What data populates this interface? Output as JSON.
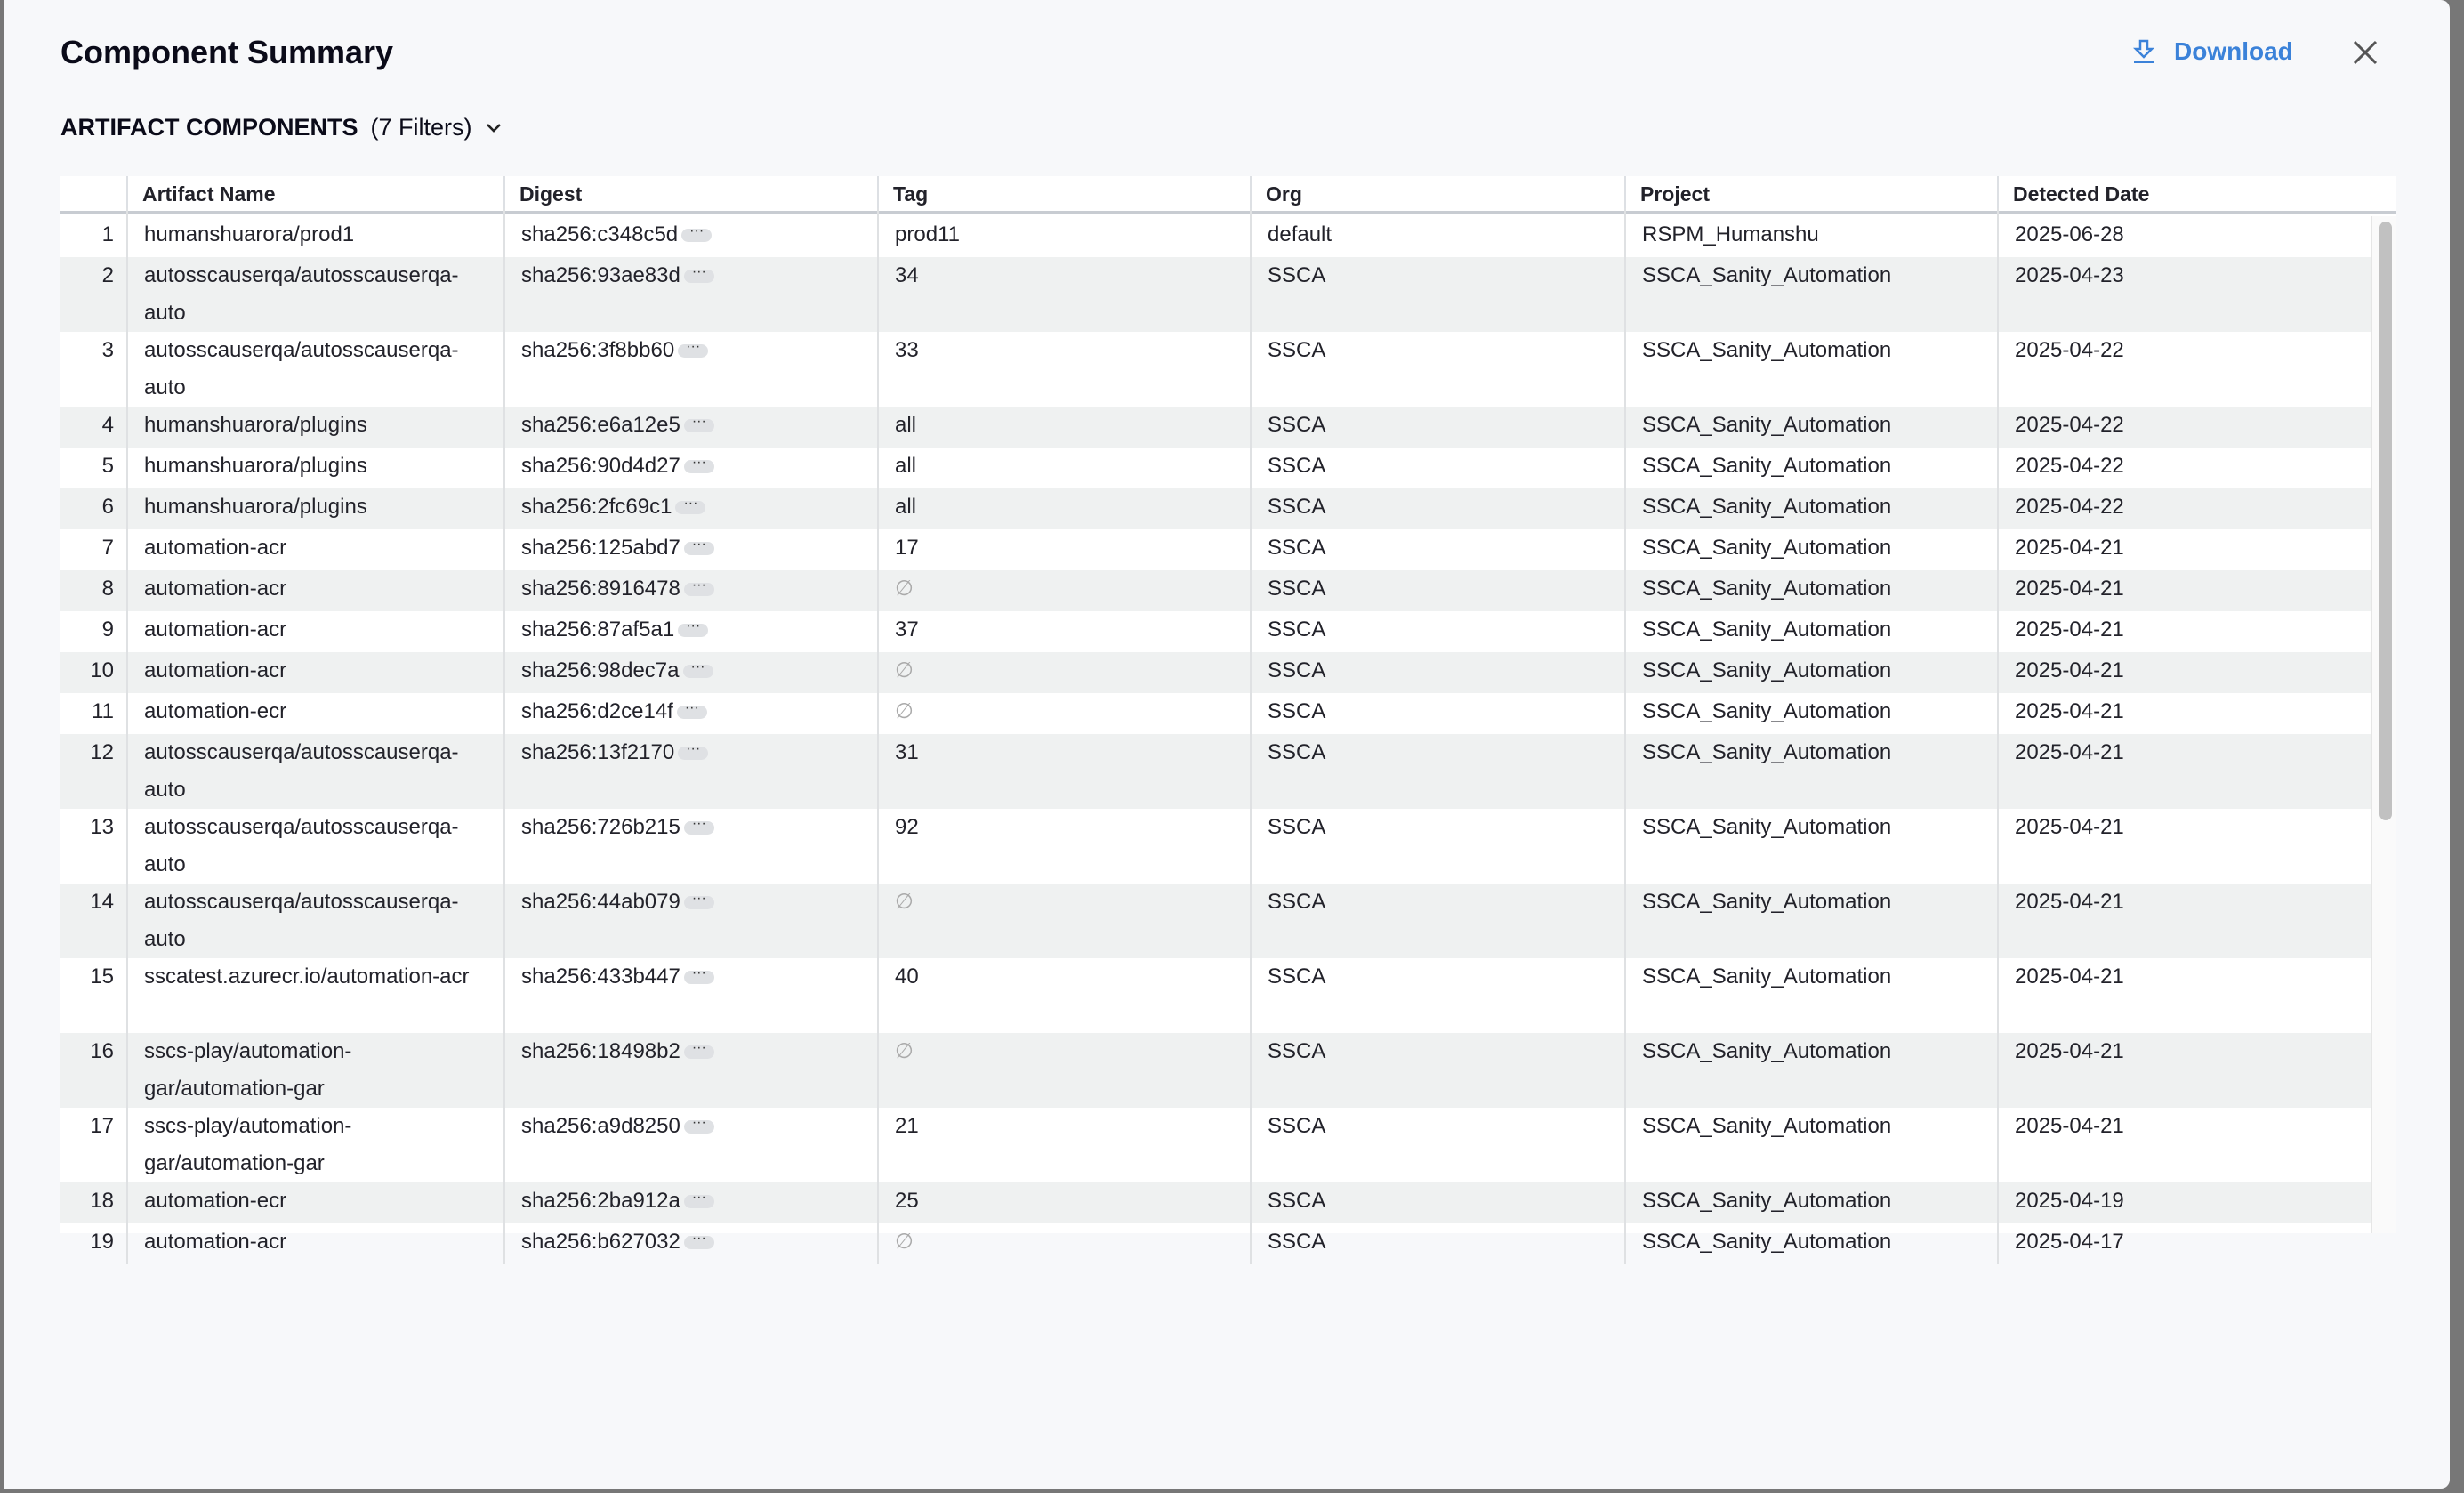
{
  "header": {
    "title": "Component Summary",
    "download_label": "Download",
    "download_icon": "download-icon",
    "close_icon": "close-icon",
    "accent": "#3b82d9"
  },
  "section": {
    "title": "ARTIFACT COMPONENTS",
    "filters": "(7 Filters)"
  },
  "table": {
    "columns": [
      "",
      "Artifact Name",
      "Digest",
      "Tag",
      "Org",
      "Project",
      "Detected Date"
    ],
    "rows": [
      {
        "n": "1",
        "name": "humanshuarora/prod1",
        "digest": "sha256:c348c5d",
        "tag": "prod11",
        "org": "default",
        "project": "RSPM_Humanshu",
        "date": "2025-06-28"
      },
      {
        "n": "2",
        "name": "autosscauserqa/autosscauserqa-auto",
        "digest": "sha256:93ae83d",
        "tag": "34",
        "org": "SSCA",
        "project": "SSCA_Sanity_Automation",
        "date": "2025-04-23"
      },
      {
        "n": "3",
        "name": "autosscauserqa/autosscauserqa-auto",
        "digest": "sha256:3f8bb60",
        "tag": "33",
        "org": "SSCA",
        "project": "SSCA_Sanity_Automation",
        "date": "2025-04-22"
      },
      {
        "n": "4",
        "name": "humanshuarora/plugins",
        "digest": "sha256:e6a12e5",
        "tag": "all",
        "org": "SSCA",
        "project": "SSCA_Sanity_Automation",
        "date": "2025-04-22"
      },
      {
        "n": "5",
        "name": "humanshuarora/plugins",
        "digest": "sha256:90d4d27",
        "tag": "all",
        "org": "SSCA",
        "project": "SSCA_Sanity_Automation",
        "date": "2025-04-22"
      },
      {
        "n": "6",
        "name": "humanshuarora/plugins",
        "digest": "sha256:2fc69c1",
        "tag": "all",
        "org": "SSCA",
        "project": "SSCA_Sanity_Automation",
        "date": "2025-04-22"
      },
      {
        "n": "7",
        "name": "automation-acr",
        "digest": "sha256:125abd7",
        "tag": "17",
        "org": "SSCA",
        "project": "SSCA_Sanity_Automation",
        "date": "2025-04-21"
      },
      {
        "n": "8",
        "name": "automation-acr",
        "digest": "sha256:8916478",
        "tag": "∅",
        "org": "SSCA",
        "project": "SSCA_Sanity_Automation",
        "date": "2025-04-21"
      },
      {
        "n": "9",
        "name": "automation-acr",
        "digest": "sha256:87af5a1",
        "tag": "37",
        "org": "SSCA",
        "project": "SSCA_Sanity_Automation",
        "date": "2025-04-21"
      },
      {
        "n": "10",
        "name": "automation-acr",
        "digest": "sha256:98dec7a",
        "tag": "∅",
        "org": "SSCA",
        "project": "SSCA_Sanity_Automation",
        "date": "2025-04-21"
      },
      {
        "n": "11",
        "name": "automation-ecr",
        "digest": "sha256:d2ce14f",
        "tag": "∅",
        "org": "SSCA",
        "project": "SSCA_Sanity_Automation",
        "date": "2025-04-21"
      },
      {
        "n": "12",
        "name": "autosscauserqa/autosscauserqa-auto",
        "digest": "sha256:13f2170",
        "tag": "31",
        "org": "SSCA",
        "project": "SSCA_Sanity_Automation",
        "date": "2025-04-21"
      },
      {
        "n": "13",
        "name": "autosscauserqa/autosscauserqa-auto",
        "digest": "sha256:726b215",
        "tag": "92",
        "org": "SSCA",
        "project": "SSCA_Sanity_Automation",
        "date": "2025-04-21"
      },
      {
        "n": "14",
        "name": "autosscauserqa/autosscauserqa-auto",
        "digest": "sha256:44ab079",
        "tag": "∅",
        "org": "SSCA",
        "project": "SSCA_Sanity_Automation",
        "date": "2025-04-21"
      },
      {
        "n": "15",
        "name": "sscatest.azurecr.io/automation-acr",
        "digest": "sha256:433b447",
        "tag": "40",
        "org": "SSCA",
        "project": "SSCA_Sanity_Automation",
        "date": "2025-04-21"
      },
      {
        "n": "16",
        "name": "sscs-play/automation-gar/automation-gar",
        "digest": "sha256:18498b2",
        "tag": "∅",
        "org": "SSCA",
        "project": "SSCA_Sanity_Automation",
        "date": "2025-04-21"
      },
      {
        "n": "17",
        "name": "sscs-play/automation-gar/automation-gar",
        "digest": "sha256:a9d8250",
        "tag": "21",
        "org": "SSCA",
        "project": "SSCA_Sanity_Automation",
        "date": "2025-04-21"
      },
      {
        "n": "18",
        "name": "automation-ecr",
        "digest": "sha256:2ba912a",
        "tag": "25",
        "org": "SSCA",
        "project": "SSCA_Sanity_Automation",
        "date": "2025-04-19"
      },
      {
        "n": "19",
        "name": "automation-acr",
        "digest": "sha256:b627032",
        "tag": "∅",
        "org": "SSCA",
        "project": "SSCA_Sanity_Automation",
        "date": "2025-04-17"
      }
    ]
  }
}
